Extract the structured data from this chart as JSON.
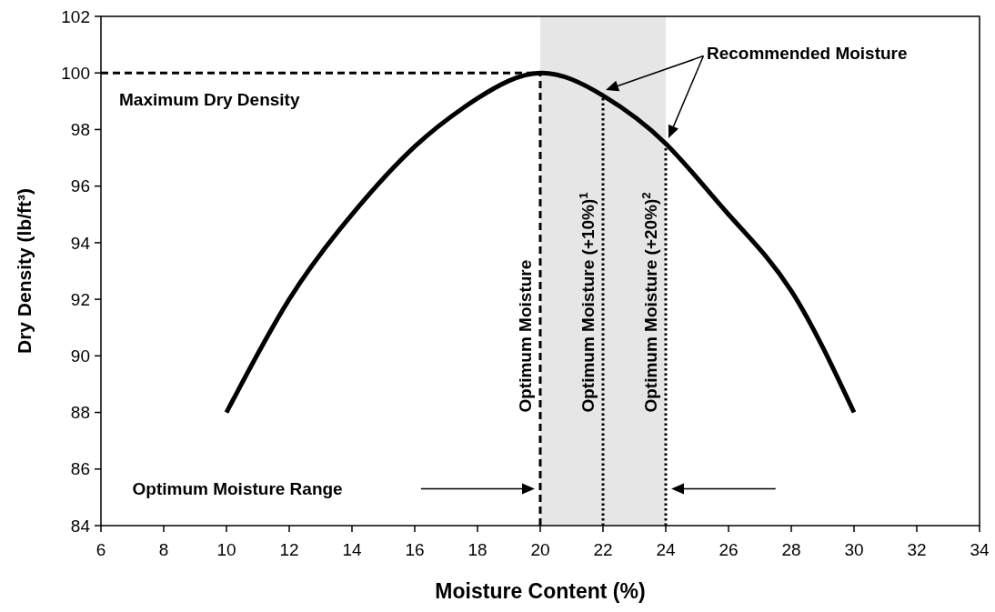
{
  "chart_data": {
    "type": "line",
    "xlabel": "Moisture Content (%)",
    "ylabel": "Dry Density (lb/ft³)",
    "x": [
      10,
      12,
      14,
      16,
      18,
      20,
      22,
      24,
      26,
      28,
      30
    ],
    "series": [
      {
        "color": "#000000",
        "values": [
          88,
          92,
          95,
          97.4,
          99.1,
          100,
          99.2,
          97.5,
          95,
          92.3,
          88
        ]
      }
    ],
    "xlim": [
      6,
      34
    ],
    "xticks": [
      6,
      8,
      10,
      12,
      14,
      16,
      18,
      20,
      22,
      24,
      26,
      28,
      30,
      32,
      34
    ],
    "ylim": [
      84,
      102
    ],
    "yticks": [
      84,
      86,
      88,
      90,
      92,
      94,
      96,
      98,
      100,
      102
    ],
    "grid": false,
    "marker": "none",
    "line_style": "solid",
    "bands": [
      {
        "axis": "x",
        "from": 20,
        "to": 24,
        "color": "#e6e6e6"
      }
    ],
    "ref_lines": [
      {
        "axis": "y",
        "value": 100,
        "label": "Maximum Dry Density",
        "line_style": "dashed",
        "color": "#000000"
      },
      {
        "axis": "x",
        "value": 20,
        "label": "Optimum Moisture",
        "line_style": "dashed",
        "color": "#000000"
      },
      {
        "axis": "x",
        "value": 22,
        "label": "Optimum Moisture (+10%)$^{1}$",
        "line_style": "dotted",
        "color": "#000000"
      },
      {
        "axis": "x",
        "value": 24,
        "label": "Optimum Moisture (+20%)$^{2}$",
        "line_style": "dotted",
        "color": "#000000"
      }
    ],
    "annotations": [
      "Optimum Moisture Range",
      "Recommended Moisture"
    ]
  }
}
